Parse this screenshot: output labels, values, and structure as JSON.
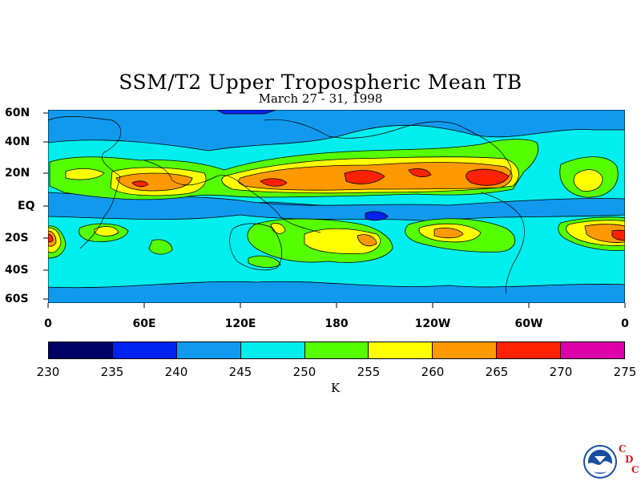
{
  "title": "SSM/T2 Upper Tropospheric Mean TB",
  "subtitle": "March 27 - 31, 1998",
  "lat_labels": [
    "60N",
    "40N",
    "20N",
    "EQ",
    "20S",
    "40S",
    "60S"
  ],
  "lon_labels": [
    "0",
    "60E",
    "120E",
    "180",
    "120W",
    "60W",
    "0"
  ],
  "colorbar": {
    "ticks": [
      "230",
      "235",
      "240",
      "245",
      "250",
      "255",
      "260",
      "265",
      "270",
      "275"
    ],
    "colors": [
      "#000066",
      "#0022ee",
      "#1199ee",
      "#00eeee",
      "#55ff00",
      "#ffff00",
      "#ff9900",
      "#ff2200",
      "#dd00aa"
    ],
    "unit": "K"
  },
  "logo": {
    "name": "NOAA",
    "lab": [
      "C",
      "D",
      "C"
    ]
  }
}
